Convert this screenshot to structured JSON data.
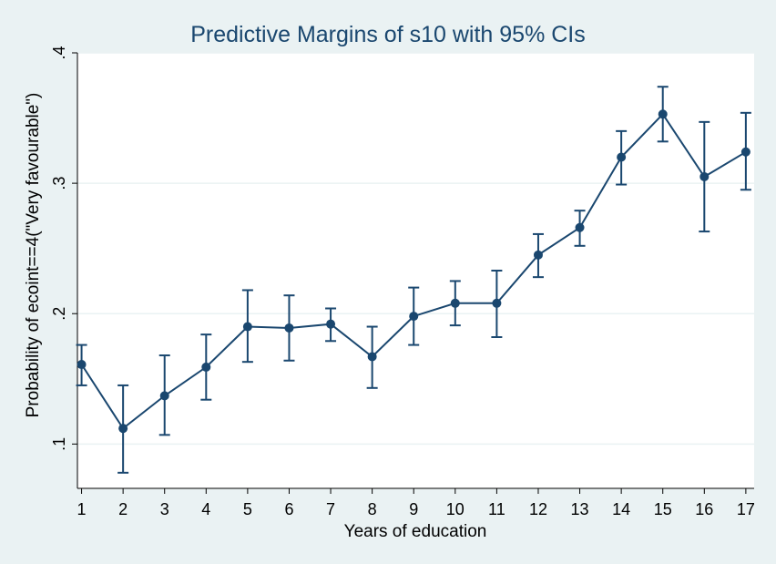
{
  "chart_data": {
    "type": "line",
    "title": "Predictive Margins of s10 with 95% CIs",
    "xlabel": "Years of education",
    "ylabel": "Probability of ecoint==4(\"Very favourable\")",
    "x": [
      1,
      2,
      3,
      4,
      5,
      6,
      7,
      8,
      9,
      10,
      11,
      12,
      13,
      14,
      15,
      16,
      17
    ],
    "x_ticks": [
      1,
      2,
      3,
      4,
      5,
      6,
      7,
      8,
      9,
      10,
      11,
      12,
      13,
      14,
      15,
      16,
      17
    ],
    "y_ticks": [
      0.1,
      0.2,
      0.3,
      0.4
    ],
    "y_tick_labels": [
      ".1",
      ".2",
      ".3",
      ".4"
    ],
    "xlim": [
      0.9,
      17.2
    ],
    "ylim": [
      0.066,
      0.4
    ],
    "grid": true,
    "series": [
      {
        "values": [
          0.161,
          0.112,
          0.137,
          0.159,
          0.19,
          0.189,
          0.192,
          0.167,
          0.198,
          0.208,
          0.208,
          0.245,
          0.266,
          0.32,
          0.353,
          0.305,
          0.324
        ],
        "ci_lower": [
          0.145,
          0.078,
          0.107,
          0.134,
          0.163,
          0.164,
          0.179,
          0.143,
          0.176,
          0.191,
          0.182,
          0.228,
          0.252,
          0.299,
          0.332,
          0.263,
          0.295
        ],
        "ci_upper": [
          0.176,
          0.145,
          0.168,
          0.184,
          0.218,
          0.214,
          0.204,
          0.19,
          0.22,
          0.225,
          0.233,
          0.261,
          0.279,
          0.34,
          0.374,
          0.347,
          0.354
        ]
      }
    ],
    "colors": {
      "line": "#1a476f",
      "background": "#eaf2f3",
      "plot_background": "#ffffff",
      "grid": "#eaf2f3",
      "title": "#1a476f"
    }
  }
}
